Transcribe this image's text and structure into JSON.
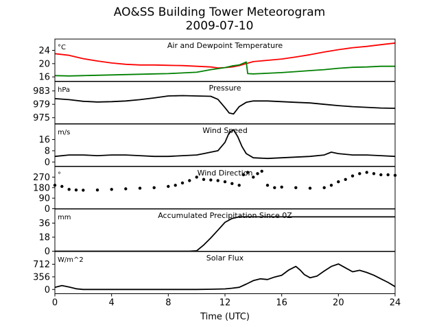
{
  "figure": {
    "title_line1": "AO&SS Building Tower Meteorogram",
    "title_line2": "2009-07-10",
    "xlabel": "Time (UTC)"
  },
  "colors": {
    "temperature": "#ff0000",
    "dewpoint": "#008000",
    "default": "#000000"
  },
  "chart_data": [
    {
      "type": "line",
      "title": "Air and Dewpoint Temperature",
      "unit": "°C",
      "xlim": [
        0,
        24
      ],
      "ylim": [
        14.7,
        27.4
      ],
      "yticks": [
        16,
        20,
        24
      ],
      "ytick_labels": [
        "16",
        "20",
        "24"
      ],
      "series": [
        {
          "key": "temperature",
          "color": "#ff0000",
          "x": [
            0,
            1,
            2,
            3,
            4,
            5,
            6,
            7,
            8,
            9,
            10,
            11,
            11.5,
            12,
            12.5,
            13,
            13.5,
            14,
            15,
            16,
            17,
            18,
            19,
            20,
            21,
            22,
            23,
            24
          ],
          "values": [
            23.0,
            22.5,
            21.5,
            20.8,
            20.2,
            19.8,
            19.6,
            19.6,
            19.5,
            19.4,
            19.2,
            19.0,
            18.7,
            18.8,
            19.0,
            19.4,
            20.0,
            20.6,
            21.0,
            21.4,
            22.0,
            22.7,
            23.5,
            24.2,
            24.8,
            25.2,
            25.7,
            26.2
          ]
        },
        {
          "key": "dewpoint",
          "color": "#008000",
          "x": [
            0,
            1,
            2,
            3,
            4,
            5,
            6,
            7,
            8,
            9,
            10,
            11,
            12,
            12.5,
            13,
            13.5,
            13.6,
            14,
            15,
            16,
            17,
            18,
            19,
            20,
            21,
            22,
            23,
            24
          ],
          "values": [
            16.4,
            16.3,
            16.4,
            16.5,
            16.6,
            16.7,
            16.8,
            16.9,
            17.0,
            17.2,
            17.4,
            18.2,
            18.8,
            19.3,
            19.6,
            20.5,
            17.0,
            16.9,
            17.1,
            17.3,
            17.6,
            17.9,
            18.2,
            18.6,
            18.9,
            19.0,
            19.2,
            19.2
          ]
        }
      ]
    },
    {
      "type": "line",
      "title": "Pressure",
      "unit": "hPa",
      "xlim": [
        0,
        24
      ],
      "ylim": [
        973.2,
        985.8
      ],
      "yticks": [
        975,
        979,
        983
      ],
      "ytick_labels": [
        "975",
        "979",
        "983"
      ],
      "series": [
        {
          "key": "pressure",
          "color": "#000000",
          "x": [
            0,
            1,
            2,
            3,
            4,
            5,
            6,
            7,
            8,
            9,
            10,
            11,
            11.5,
            12,
            12.3,
            12.6,
            13,
            13.5,
            14,
            15,
            16,
            17,
            18,
            19,
            20,
            21,
            22,
            23,
            24
          ],
          "values": [
            980.7,
            980.4,
            979.9,
            979.7,
            979.8,
            980.0,
            980.4,
            980.9,
            981.5,
            981.6,
            981.5,
            981.4,
            980.5,
            978.0,
            976.4,
            976.1,
            978.3,
            979.6,
            980.0,
            980.0,
            979.8,
            979.6,
            979.4,
            979.0,
            978.6,
            978.3,
            978.1,
            977.9,
            977.8
          ]
        }
      ]
    },
    {
      "type": "line",
      "title": "Wind Speed",
      "unit": "m/s",
      "xlim": [
        0,
        24
      ],
      "ylim": [
        -3,
        27
      ],
      "yticks": [
        0,
        8,
        16
      ],
      "ytick_labels": [
        "0",
        "8",
        "16"
      ],
      "series": [
        {
          "key": "wind_speed",
          "color": "#000000",
          "x": [
            0,
            1,
            2,
            3,
            4,
            5,
            6,
            7,
            8,
            9,
            10,
            10.5,
            11,
            11.5,
            12,
            12.3,
            12.6,
            12.9,
            13.2,
            13.5,
            14,
            15,
            16,
            17,
            18,
            19,
            19.5,
            20,
            21,
            22,
            23,
            24
          ],
          "values": [
            4,
            5,
            5,
            4.5,
            5,
            5,
            4.5,
            4,
            4,
            4.5,
            5,
            6,
            7,
            8,
            14,
            21,
            23,
            18,
            11,
            6,
            3,
            2.5,
            3,
            3.5,
            4,
            5,
            7,
            6,
            5,
            5,
            4.5,
            4
          ]
        }
      ]
    },
    {
      "type": "scatter",
      "title": "Wind Direction",
      "unit": "°",
      "xlim": [
        0,
        24
      ],
      "ylim": [
        0,
        360
      ],
      "yticks": [
        0,
        90,
        180,
        270
      ],
      "ytick_labels": [
        "0",
        "90",
        "180",
        "270"
      ],
      "series": [
        {
          "key": "wind_direction",
          "color": "#000000",
          "x": [
            0,
            0.5,
            1,
            1.5,
            2,
            3,
            4,
            5,
            6,
            7,
            8,
            8.5,
            9,
            9.5,
            10,
            10.5,
            11,
            11.5,
            12,
            12.5,
            13,
            13.3,
            13.6,
            14,
            14.3,
            14.6,
            15,
            15.5,
            16,
            17,
            18,
            19,
            19.5,
            20,
            20.5,
            21,
            21.5,
            22,
            22.5,
            23,
            23.5,
            24
          ],
          "values": [
            200,
            190,
            165,
            160,
            158,
            160,
            165,
            170,
            175,
            180,
            190,
            200,
            220,
            240,
            270,
            250,
            245,
            240,
            230,
            215,
            200,
            290,
            310,
            270,
            300,
            320,
            200,
            180,
            185,
            180,
            175,
            180,
            200,
            230,
            250,
            280,
            300,
            310,
            300,
            290,
            290,
            285
          ]
        }
      ]
    },
    {
      "type": "line",
      "title": "Accumulated Precipitation Since 0Z",
      "unit": "mm",
      "xlim": [
        0,
        24
      ],
      "ylim": [
        0,
        54
      ],
      "yticks": [
        0,
        18,
        36
      ],
      "ytick_labels": [
        "0",
        "18",
        "36"
      ],
      "series": [
        {
          "key": "precip",
          "color": "#000000",
          "x": [
            0,
            9.5,
            10,
            10.5,
            11,
            11.5,
            12,
            12.5,
            13,
            14,
            24
          ],
          "values": [
            0,
            0,
            0.5,
            8,
            17,
            27,
            37,
            42,
            44,
            44,
            44
          ]
        }
      ]
    },
    {
      "type": "line",
      "title": "Solar Flux",
      "unit": "W/m^2",
      "xlim": [
        0,
        24
      ],
      "ylim": [
        -120,
        1070
      ],
      "yticks": [
        0,
        356,
        712
      ],
      "ytick_labels": [
        "0",
        "356",
        "712"
      ],
      "series": [
        {
          "key": "solar",
          "color": "#000000",
          "x": [
            0,
            0.5,
            1,
            1.5,
            2,
            4,
            6,
            8,
            10,
            11,
            12,
            12.5,
            13,
            13.5,
            14,
            14.5,
            15,
            15.5,
            16,
            16.5,
            17,
            17.3,
            17.6,
            18,
            18.5,
            19,
            19.5,
            20,
            20.5,
            21,
            21.5,
            22,
            22.5,
            23,
            23.5,
            24
          ],
          "values": [
            60,
            110,
            70,
            20,
            0,
            0,
            0,
            0,
            0,
            5,
            15,
            35,
            60,
            150,
            250,
            300,
            280,
            350,
            400,
            550,
            650,
            550,
            420,
            330,
            380,
            520,
            650,
            720,
            610,
            500,
            540,
            480,
            400,
            300,
            200,
            80
          ]
        }
      ]
    }
  ],
  "xaxis": {
    "ticks": [
      0,
      4,
      8,
      12,
      16,
      20,
      24
    ],
    "tick_labels": [
      "0",
      "4",
      "8",
      "12",
      "16",
      "20",
      "24"
    ]
  }
}
